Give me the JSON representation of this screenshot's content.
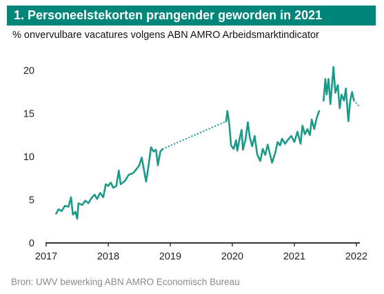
{
  "header": {
    "title": "1. Personeelstekorten prangender geworden in 2021"
  },
  "subtitle": "% onvervulbare vacatures volgens ABN AMRO Arbeidsmarktindicator",
  "source": "Bron: UWV bewerking ABN AMRO Economisch Bureau",
  "colors": {
    "brand": "#00857a",
    "line": "#1a9a88",
    "axis": "#333333"
  },
  "chart_data": {
    "type": "line",
    "title": "1. Personeelstekorten prangender geworden in 2021",
    "subtitle": "% onvervulbare vacatures volgens ABN AMRO Arbeidsmarktindicator",
    "xlabel": "",
    "ylabel": "",
    "xlim": [
      2017,
      2022.1
    ],
    "ylim": [
      0,
      22
    ],
    "x_ticks": [
      "2017",
      "2018",
      "2019",
      "2020",
      "2021",
      "2022"
    ],
    "y_ticks": [
      "0",
      "5",
      "10",
      "15",
      "20"
    ],
    "grid": false,
    "legend": "none",
    "series": [
      {
        "style": "solid",
        "points": [
          [
            2017.16,
            3.4
          ],
          [
            2017.2,
            3.9
          ],
          [
            2017.25,
            3.7
          ],
          [
            2017.3,
            4.3
          ],
          [
            2017.36,
            4.2
          ],
          [
            2017.4,
            5.3
          ],
          [
            2017.43,
            3.3
          ],
          [
            2017.47,
            3.6
          ],
          [
            2017.5,
            2.8
          ],
          [
            2017.52,
            4.6
          ],
          [
            2017.58,
            4.4
          ],
          [
            2017.63,
            4.9
          ],
          [
            2017.68,
            4.6
          ],
          [
            2017.73,
            5.2
          ],
          [
            2017.78,
            5.6
          ],
          [
            2017.82,
            5.1
          ],
          [
            2017.87,
            5.8
          ],
          [
            2017.92,
            5.3
          ],
          [
            2017.96,
            6.8
          ],
          [
            2018.0,
            6.6
          ],
          [
            2018.04,
            7.0
          ],
          [
            2018.08,
            6.4
          ],
          [
            2018.13,
            6.6
          ],
          [
            2018.17,
            8.4
          ],
          [
            2018.2,
            6.8
          ],
          [
            2018.27,
            7.2
          ],
          [
            2018.33,
            7.9
          ],
          [
            2018.4,
            8.1
          ],
          [
            2018.46,
            8.6
          ],
          [
            2018.5,
            9.0
          ],
          [
            2018.54,
            9.9
          ],
          [
            2018.58,
            8.3
          ],
          [
            2018.61,
            7.1
          ],
          [
            2018.65,
            9.0
          ],
          [
            2018.69,
            11.1
          ],
          [
            2018.73,
            10.6
          ],
          [
            2018.77,
            10.8
          ],
          [
            2018.8,
            9.0
          ],
          [
            2018.84,
            10.6
          ],
          [
            2018.88,
            10.9
          ]
        ]
      },
      {
        "style": "dotted",
        "points": [
          [
            2018.88,
            10.9
          ],
          [
            2019.9,
            14.1
          ]
        ]
      },
      {
        "style": "solid",
        "points": [
          [
            2019.9,
            14.1
          ],
          [
            2019.92,
            15.3
          ],
          [
            2019.95,
            13.8
          ],
          [
            2019.98,
            11.3
          ],
          [
            2020.02,
            10.9
          ],
          [
            2020.06,
            11.9
          ],
          [
            2020.08,
            10.7
          ],
          [
            2020.12,
            12.2
          ],
          [
            2020.15,
            13.1
          ],
          [
            2020.17,
            10.8
          ],
          [
            2020.21,
            11.9
          ],
          [
            2020.25,
            14.0
          ],
          [
            2020.28,
            12.3
          ],
          [
            2020.32,
            11.2
          ],
          [
            2020.36,
            12.4
          ],
          [
            2020.4,
            10.3
          ],
          [
            2020.45,
            9.5
          ],
          [
            2020.49,
            10.9
          ],
          [
            2020.53,
            10.2
          ],
          [
            2020.57,
            11.4
          ],
          [
            2020.6,
            10.5
          ],
          [
            2020.64,
            9.3
          ],
          [
            2020.69,
            10.4
          ],
          [
            2020.73,
            11.7
          ],
          [
            2020.77,
            11.3
          ],
          [
            2020.8,
            12.1
          ],
          [
            2020.85,
            11.5
          ],
          [
            2020.9,
            12.0
          ],
          [
            2020.95,
            12.4
          ],
          [
            2021.0,
            11.7
          ],
          [
            2021.05,
            12.9
          ],
          [
            2021.1,
            11.5
          ],
          [
            2021.13,
            13.6
          ],
          [
            2021.17,
            12.6
          ],
          [
            2021.21,
            13.2
          ],
          [
            2021.25,
            12.5
          ],
          [
            2021.28,
            14.3
          ],
          [
            2021.32,
            13.2
          ],
          [
            2021.36,
            14.5
          ],
          [
            2021.4,
            15.3
          ]
        ]
      },
      {
        "style": "solid",
        "points": [
          [
            2021.47,
            16.5
          ],
          [
            2021.5,
            19.0
          ],
          [
            2021.52,
            17.2
          ],
          [
            2021.55,
            19.0
          ],
          [
            2021.58,
            16.1
          ],
          [
            2021.6,
            17.8
          ],
          [
            2021.63,
            20.4
          ],
          [
            2021.66,
            17.4
          ],
          [
            2021.7,
            18.3
          ],
          [
            2021.73,
            15.6
          ],
          [
            2021.76,
            17.2
          ],
          [
            2021.8,
            16.5
          ],
          [
            2021.83,
            17.9
          ],
          [
            2021.87,
            14.1
          ],
          [
            2021.9,
            16.5
          ],
          [
            2021.93,
            17.5
          ],
          [
            2021.96,
            16.5
          ]
        ]
      },
      {
        "style": "dotted",
        "points": [
          [
            2021.96,
            16.5
          ],
          [
            2022.05,
            15.8
          ]
        ]
      }
    ]
  }
}
